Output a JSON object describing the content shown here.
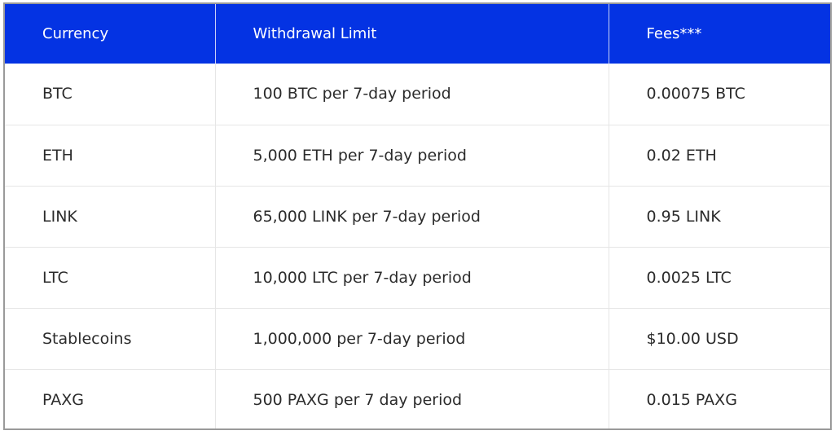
{
  "table": {
    "headers": [
      "Currency",
      "Withdrawal Limit",
      "Fees***"
    ],
    "rows": [
      [
        "BTC",
        "100 BTC per 7-day period",
        "0.00075 BTC"
      ],
      [
        "ETH",
        "5,000 ETH per 7-day period",
        "0.02 ETH"
      ],
      [
        "LINK",
        "65,000 LINK per 7-day period",
        "0.95 LINK"
      ],
      [
        "LTC",
        "10,000 LTC per 7-day period",
        "0.0025 LTC"
      ],
      [
        "Stablecoins",
        "1,000,000 per 7-day period",
        "$10.00 USD"
      ],
      [
        "PAXG",
        "500 PAXG per 7 day period",
        "0.015 PAXG"
      ]
    ]
  },
  "colors": {
    "header_background": "#0433e3",
    "header_text": "#ffffff",
    "body_text": "#2b2b2b",
    "row_divider": "#e6e6e6",
    "frame_border": "#9a9a9a"
  }
}
